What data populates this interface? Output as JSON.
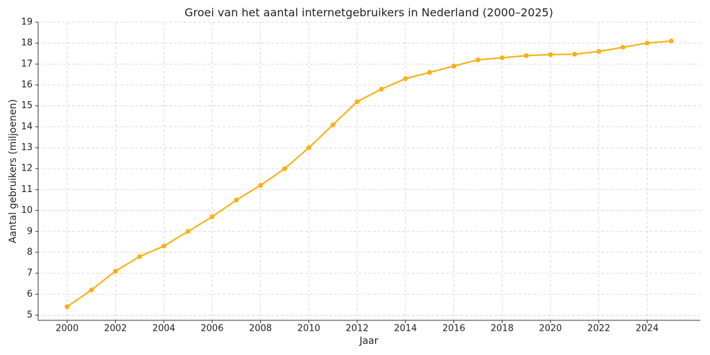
{
  "chart_data": {
    "type": "line",
    "title": "Groei van het aantal internetgebruikers in Nederland (2000–2025)",
    "x_label": "Jaar",
    "y_label": "Aantal gebruikers (miljoenen)",
    "x": [
      2000,
      2001,
      2002,
      2003,
      2004,
      2005,
      2006,
      2007,
      2008,
      2009,
      2010,
      2011,
      2012,
      2013,
      2014,
      2015,
      2016,
      2017,
      2018,
      2019,
      2020,
      2021,
      2022,
      2023,
      2024,
      2025
    ],
    "series": [
      {
        "name": "Internetgebruikers",
        "color": "#f9b115",
        "values": [
          5.4,
          6.2,
          7.1,
          7.8,
          8.3,
          9.0,
          9.7,
          10.5,
          11.2,
          12.0,
          13.0,
          14.1,
          15.2,
          15.8,
          16.3,
          16.6,
          16.9,
          17.2,
          17.3,
          17.4,
          17.45,
          17.47,
          17.6,
          17.8,
          18.0,
          18.1
        ]
      }
    ],
    "xlim": [
      1998.8,
      2026.2
    ],
    "xticks": [
      2000,
      2002,
      2004,
      2006,
      2008,
      2010,
      2012,
      2014,
      2016,
      2018,
      2020,
      2022,
      2024
    ],
    "ylim": [
      4.75,
      19
    ],
    "yticks": [
      5,
      6,
      7,
      8,
      9,
      10,
      11,
      12,
      13,
      14,
      15,
      16,
      17,
      18,
      19
    ],
    "grid": true
  }
}
